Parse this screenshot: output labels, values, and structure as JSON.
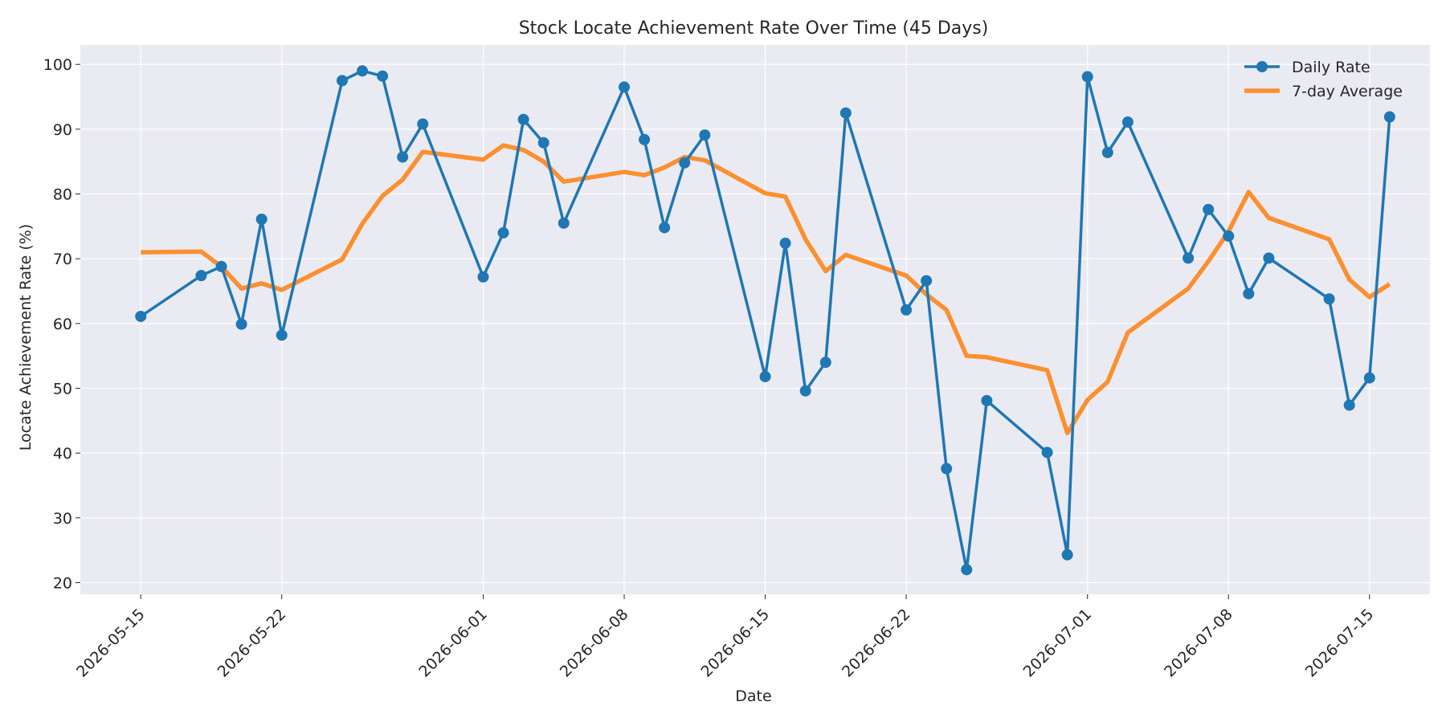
{
  "chart_data": {
    "type": "line",
    "title": "Stock Locate Achievement Rate Over Time (45 Days)",
    "xlabel": "Date",
    "ylabel": "Locate Achievement Rate (%)",
    "ylim": [
      18.2,
      103.0
    ],
    "xlim": [
      "2026-05-12",
      "2026-07-18"
    ],
    "grid": true,
    "legend_position": "top-right",
    "x_ticks": [
      "2026-05-15",
      "2026-05-22",
      "2026-06-01",
      "2026-06-08",
      "2026-06-15",
      "2026-06-22",
      "2026-07-01",
      "2026-07-08",
      "2026-07-15"
    ],
    "y_ticks": [
      20,
      30,
      40,
      50,
      60,
      70,
      80,
      90,
      100
    ],
    "x": [
      "2026-05-15",
      "2026-05-18",
      "2026-05-19",
      "2026-05-20",
      "2026-05-21",
      "2026-05-22",
      "2026-05-25",
      "2026-05-26",
      "2026-05-27",
      "2026-05-28",
      "2026-05-29",
      "2026-06-01",
      "2026-06-02",
      "2026-06-03",
      "2026-06-04",
      "2026-06-05",
      "2026-06-08",
      "2026-06-09",
      "2026-06-10",
      "2026-06-11",
      "2026-06-12",
      "2026-06-15",
      "2026-06-16",
      "2026-06-17",
      "2026-06-18",
      "2026-06-19",
      "2026-06-22",
      "2026-06-23",
      "2026-06-24",
      "2026-06-25",
      "2026-06-26",
      "2026-06-29",
      "2026-06-30",
      "2026-07-01",
      "2026-07-02",
      "2026-07-03",
      "2026-07-06",
      "2026-07-07",
      "2026-07-08",
      "2026-07-09",
      "2026-07-10",
      "2026-07-13",
      "2026-07-14",
      "2026-07-15",
      "2026-07-16"
    ],
    "series": [
      {
        "name": "Daily Rate",
        "color": "#1f77b4",
        "marker": "circle",
        "values": [
          61.1,
          67.4,
          68.8,
          59.9,
          76.1,
          58.2,
          97.5,
          99.0,
          98.2,
          85.7,
          90.8,
          67.2,
          74.0,
          91.5,
          87.9,
          75.5,
          96.5,
          88.4,
          74.8,
          84.8,
          89.1,
          51.8,
          72.4,
          49.6,
          54.0,
          92.5,
          62.1,
          66.6,
          37.6,
          22.0,
          48.1,
          40.1,
          24.3,
          98.1,
          86.4,
          91.1,
          70.1,
          77.6,
          73.5,
          64.6,
          70.1,
          63.8,
          47.4,
          51.6,
          91.9
        ]
      },
      {
        "name": "7-day Average",
        "color": "#ff7f0e",
        "values": [
          71.0,
          71.1,
          68.8,
          65.4,
          66.2,
          65.2,
          69.9,
          75.4,
          79.7,
          82.2,
          86.5,
          85.3,
          87.5,
          86.8,
          85.0,
          81.9,
          83.4,
          82.9,
          84.1,
          85.7,
          85.2,
          80.1,
          79.6,
          73.0,
          68.1,
          70.6,
          67.4,
          64.5,
          62.1,
          55.0,
          54.8,
          52.8,
          43.1,
          48.2,
          51.0,
          58.6,
          65.4,
          69.6,
          74.2,
          80.3,
          76.3,
          73.0,
          66.8,
          64.1,
          66.1
        ]
      }
    ]
  }
}
